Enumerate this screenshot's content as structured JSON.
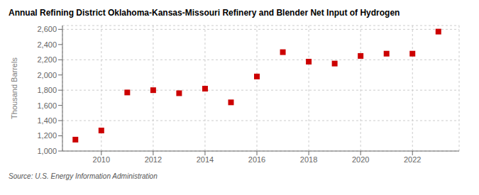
{
  "chart_data": {
    "type": "scatter",
    "title": "Annual Refining District Oklahoma-Kansas-Missouri Refinery and Blender Net Input of Hydrogen",
    "ylabel": "Thousand Barrels",
    "annotations": [
      "Source: U.S. Energy Information Administration"
    ],
    "x": [
      2009,
      2010,
      2011,
      2012,
      2013,
      2014,
      2015,
      2016,
      2017,
      2018,
      2019,
      2020,
      2021,
      2022,
      2023
    ],
    "values": [
      1150,
      1270,
      1770,
      1800,
      1760,
      1820,
      1640,
      1980,
      2300,
      2175,
      2150,
      2250,
      2280,
      2280,
      2570
    ],
    "color": "#cc0000",
    "marker": "square",
    "xlim": [
      2008.5,
      2023.8
    ],
    "xticks": [
      2010,
      2012,
      2014,
      2016,
      2018,
      2020,
      2022
    ],
    "ylim": [
      1000,
      2650
    ],
    "yticks": [
      {
        "value": 1000,
        "label": "1,000"
      },
      {
        "value": 1200,
        "label": "1,200"
      },
      {
        "value": 1400,
        "label": "1,400"
      },
      {
        "value": 1600,
        "label": "1,600"
      },
      {
        "value": 1800,
        "label": "1,800"
      },
      {
        "value": 2000,
        "label": "2,000"
      },
      {
        "value": 2200,
        "label": "2,200"
      },
      {
        "value": 2400,
        "label": "2,400"
      },
      {
        "value": 2600,
        "label": "2,600"
      }
    ],
    "grid": true
  }
}
